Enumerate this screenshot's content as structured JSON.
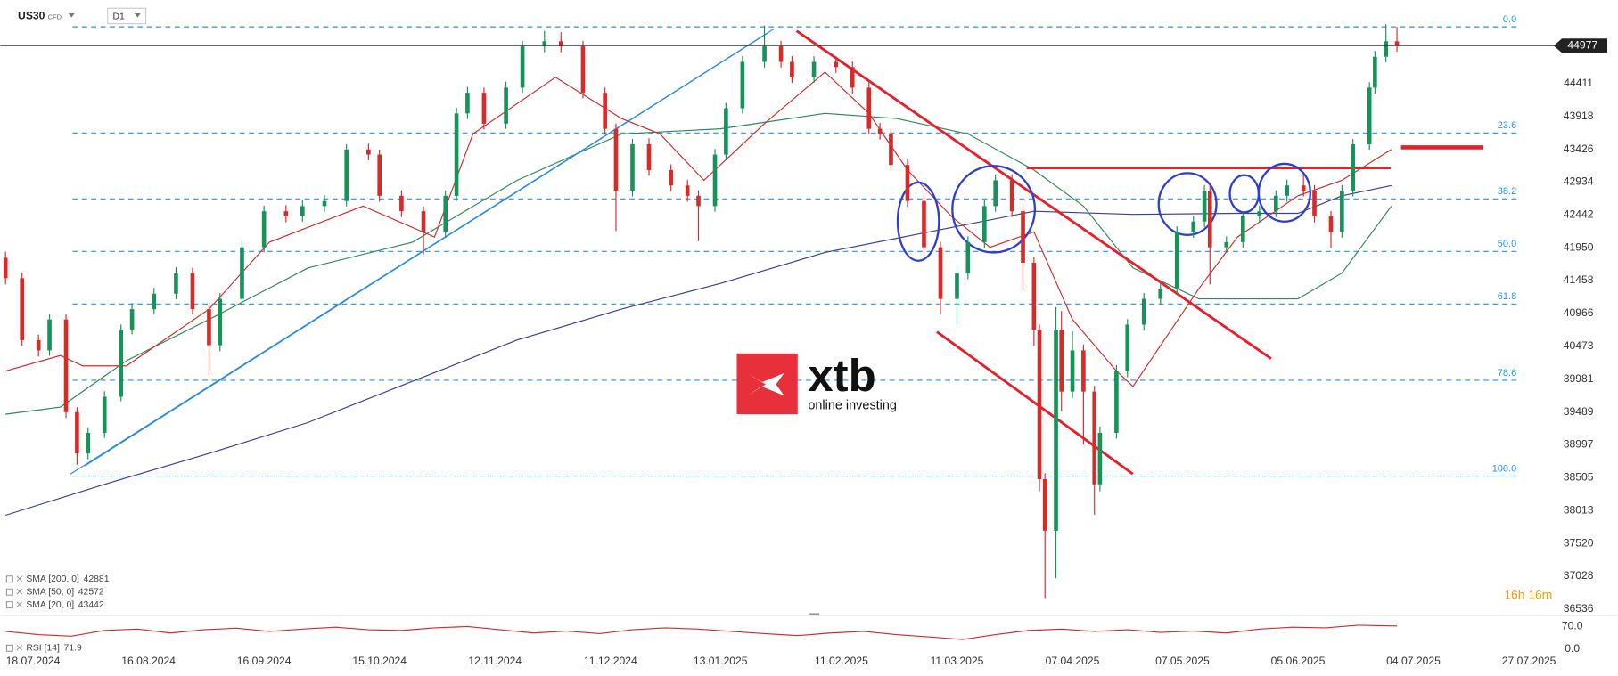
{
  "chart_data": {
    "type": "candlestick",
    "symbol": "US30",
    "instrument_type": "CFD",
    "timeframe": "D1",
    "logo": {
      "name": "xtb",
      "tagline": "online investing"
    },
    "countdown": "16h 16m",
    "current_price": 44977,
    "up_color": "#17935a",
    "down_color": "#d92a2a",
    "xlim": [
      0,
      280
    ],
    "ylim": [
      36444,
      45662
    ],
    "xticks": [
      {
        "value": 5,
        "label": "18.07.2024"
      },
      {
        "value": 26,
        "label": "16.08.2024"
      },
      {
        "value": 47,
        "label": "16.09.2024"
      },
      {
        "value": 68,
        "label": "15.10.2024"
      },
      {
        "value": 89,
        "label": "12.11.2024"
      },
      {
        "value": 110,
        "label": "11.12.2024"
      },
      {
        "value": 130,
        "label": "13.01.2025"
      },
      {
        "value": 152,
        "label": "11.02.2025"
      },
      {
        "value": 173,
        "label": "11.03.2025"
      },
      {
        "value": 194,
        "label": "07.04.2025"
      },
      {
        "value": 214,
        "label": "07.05.2025"
      },
      {
        "value": 235,
        "label": "05.06.2025"
      },
      {
        "value": 256,
        "label": "04.07.2025"
      },
      {
        "value": 277,
        "label": "27.07.2025"
      }
    ],
    "yticks": [
      44411,
      43918,
      43426,
      42934,
      42442,
      41950,
      41458,
      40966,
      40473,
      39981,
      39489,
      38997,
      38505,
      38013,
      37520,
      37028,
      36536
    ],
    "fib_levels": [
      {
        "label": "0.0",
        "value": 45260
      },
      {
        "label": "23.6",
        "value": 43670
      },
      {
        "label": "38.2",
        "value": 42682
      },
      {
        "label": "50.0",
        "value": 41894
      },
      {
        "label": "61.8",
        "value": 41107
      },
      {
        "label": "78.6",
        "value": 39964
      },
      {
        "label": "100.0",
        "value": 38528
      }
    ],
    "fib_color": "#2196f3",
    "candles": {
      "x": [
        0,
        3,
        6,
        8,
        11,
        13,
        15,
        18,
        21,
        23,
        27,
        31,
        34,
        37,
        39,
        43,
        47,
        51,
        54,
        58,
        62,
        66,
        68,
        72,
        76,
        80,
        82,
        84,
        87,
        91,
        94,
        98,
        101,
        105,
        109,
        111,
        114,
        117,
        121,
        124,
        126,
        129,
        131,
        134,
        138,
        141,
        143,
        147,
        151,
        154,
        157,
        159,
        161,
        164,
        167,
        170,
        173,
        175,
        178,
        180,
        183,
        185,
        187,
        188,
        189,
        191,
        192,
        194,
        196,
        198,
        199,
        202,
        204,
        207,
        210,
        213,
        216,
        218,
        219,
        222,
        225,
        228,
        231,
        233,
        236,
        238,
        241,
        243,
        245,
        248,
        249,
        251,
        253
      ],
      "open": [
        41800,
        41493,
        40566,
        40412,
        40875,
        39486,
        38868,
        39177,
        39717,
        40721,
        41030,
        41261,
        41570,
        41030,
        40489,
        41184,
        41956,
        42497,
        42420,
        42574,
        42650,
        43423,
        43346,
        42728,
        42497,
        42188,
        42728,
        43963,
        44272,
        43809,
        44349,
        44967,
        45044,
        44967,
        44272,
        43732,
        42805,
        43500,
        43114,
        42883,
        42728,
        42574,
        43346,
        44040,
        44735,
        44967,
        44735,
        44504,
        44735,
        44658,
        44349,
        43732,
        43655,
        43191,
        42651,
        41956,
        41184,
        41570,
        42034,
        42574,
        42960,
        42497,
        41725,
        40721,
        38482,
        37710,
        40721,
        39795,
        40412,
        39795,
        38405,
        39177,
        40103,
        40798,
        41184,
        41339,
        42188,
        42343,
        42805,
        41956,
        42034,
        42420,
        42497,
        42728,
        42883,
        42805,
        42420,
        42188,
        42805,
        43500,
        44349,
        44812,
        45044
      ],
      "high": [
        41890,
        41580,
        40650,
        40960,
        40950,
        39560,
        39260,
        39800,
        40800,
        41120,
        41350,
        41660,
        41650,
        41100,
        41270,
        42040,
        42580,
        42590,
        42660,
        42740,
        43500,
        43510,
        43420,
        42810,
        42570,
        42810,
        44050,
        44360,
        44350,
        44440,
        45050,
        45200,
        45180,
        45050,
        44350,
        43810,
        43580,
        43590,
        43200,
        42970,
        42810,
        43430,
        44120,
        44820,
        45280,
        45050,
        44820,
        44820,
        44820,
        44740,
        44430,
        43820,
        43740,
        43280,
        42740,
        42040,
        41660,
        42120,
        42660,
        43050,
        43050,
        42580,
        41810,
        40800,
        38570,
        41060,
        41000,
        40700,
        40500,
        39880,
        39270,
        40190,
        40880,
        41270,
        41430,
        42270,
        42430,
        42890,
        42890,
        42120,
        42500,
        42580,
        42810,
        42970,
        43050,
        42890,
        42500,
        42890,
        43580,
        44430,
        44900,
        45300,
        45260
      ],
      "low": [
        41400,
        40480,
        40320,
        40330,
        39400,
        38700,
        38780,
        39100,
        39650,
        40650,
        40950,
        41180,
        40950,
        40050,
        40400,
        41100,
        41880,
        42330,
        42340,
        42490,
        42570,
        43260,
        42640,
        42410,
        41850,
        42100,
        42650,
        43880,
        43720,
        43730,
        44270,
        44880,
        44880,
        44190,
        43650,
        42200,
        42720,
        43030,
        42790,
        42640,
        42050,
        42490,
        43260,
        43960,
        44650,
        44650,
        44420,
        44420,
        44570,
        44260,
        43650,
        43570,
        43100,
        42560,
        41870,
        40950,
        40800,
        41480,
        41950,
        42490,
        42410,
        41300,
        40480,
        38300,
        36700,
        37000,
        39500,
        39700,
        39000,
        37950,
        38300,
        39090,
        40010,
        40710,
        41100,
        41250,
        42100,
        42260,
        41400,
        41870,
        41950,
        42330,
        42410,
        42640,
        42720,
        42330,
        41950,
        42100,
        42720,
        43420,
        44260,
        44730,
        44890
      ],
      "close": [
        41493,
        40566,
        40412,
        40875,
        39486,
        38868,
        39177,
        39717,
        40721,
        41030,
        41261,
        41570,
        41030,
        40489,
        41184,
        41956,
        42497,
        42420,
        42574,
        42650,
        43423,
        43346,
        42728,
        42497,
        42188,
        42728,
        43963,
        44272,
        43809,
        44349,
        44967,
        45044,
        44967,
        44272,
        43732,
        42805,
        43500,
        43114,
        42883,
        42728,
        42574,
        43346,
        44040,
        44735,
        44967,
        44735,
        44504,
        44735,
        44658,
        44349,
        43732,
        43655,
        43191,
        42651,
        41956,
        41184,
        41570,
        42034,
        42574,
        42960,
        42497,
        41725,
        40721,
        38482,
        37710,
        40721,
        39795,
        40412,
        39795,
        38405,
        39177,
        40103,
        40798,
        41184,
        41339,
        42188,
        42343,
        42805,
        41956,
        42034,
        42420,
        42497,
        42728,
        42883,
        42805,
        42420,
        42188,
        42805,
        43500,
        44349,
        44812,
        45044,
        44977
      ]
    },
    "series": [
      {
        "name": "SMA [200, 0]",
        "color": "#3b3f9c",
        "last": 42881,
        "x": [
          0,
          18,
          37,
          55,
          74,
          93,
          112,
          130,
          149,
          168,
          187,
          205,
          224,
          235,
          243,
          252
        ],
        "values": [
          37942,
          38405,
          38868,
          39332,
          39949,
          40567,
          41030,
          41416,
          41879,
          42188,
          42497,
          42450,
          42466,
          42466,
          42728,
          42883
        ]
      },
      {
        "name": "SMA [50, 0]",
        "color": "#2e8b57",
        "last": 42572,
        "x": [
          0,
          10,
          22,
          37,
          55,
          74,
          93,
          112,
          130,
          149,
          162,
          175,
          187,
          196,
          205,
          217,
          235,
          243,
          252
        ],
        "values": [
          39455,
          39563,
          40258,
          40876,
          41648,
          42034,
          42960,
          43655,
          43732,
          43964,
          43886,
          43655,
          43114,
          42574,
          41648,
          41185,
          41185,
          41570,
          42574
        ]
      },
      {
        "name": "SMA [20, 0]",
        "color": "#d62a2a",
        "last": 43442,
        "x": [
          0,
          10,
          14,
          22,
          37,
          48,
          65,
          78,
          85,
          100,
          112,
          119,
          127,
          138,
          149,
          157,
          164,
          172,
          179,
          187,
          194,
          202,
          205,
          217,
          224,
          235,
          243,
          252
        ],
        "values": [
          40104,
          40335,
          40181,
          40181,
          41030,
          42034,
          42574,
          42111,
          43655,
          44504,
          43886,
          43655,
          42960,
          43809,
          44581,
          43964,
          43114,
          42420,
          41956,
          42188,
          40876,
          40104,
          39872,
          41339,
          42111,
          42728,
          42960,
          43423
        ]
      }
    ],
    "rsi": {
      "name": "RSI [14]",
      "color": "#d62a2a",
      "last": 71.9,
      "ylim": [
        -35,
        105
      ],
      "yticks": [
        {
          "value": 70,
          "label": "70.0"
        },
        {
          "value": 0,
          "label": "0.0"
        }
      ],
      "x": [
        0,
        6,
        12,
        18,
        24,
        30,
        36,
        42,
        48,
        54,
        60,
        66,
        72,
        78,
        84,
        90,
        96,
        102,
        108,
        114,
        120,
        126,
        132,
        138,
        144,
        150,
        156,
        162,
        168,
        174,
        180,
        186,
        192,
        198,
        204,
        210,
        216,
        222,
        228,
        234,
        240,
        246,
        253
      ],
      "values": [
        55,
        45,
        40,
        58,
        62,
        50,
        60,
        65,
        55,
        62,
        68,
        60,
        58,
        66,
        70,
        60,
        50,
        56,
        48,
        60,
        66,
        62,
        55,
        48,
        42,
        50,
        55,
        45,
        38,
        30,
        45,
        58,
        62,
        55,
        60,
        52,
        56,
        50,
        62,
        68,
        66,
        74,
        71.9
      ]
    }
  }
}
